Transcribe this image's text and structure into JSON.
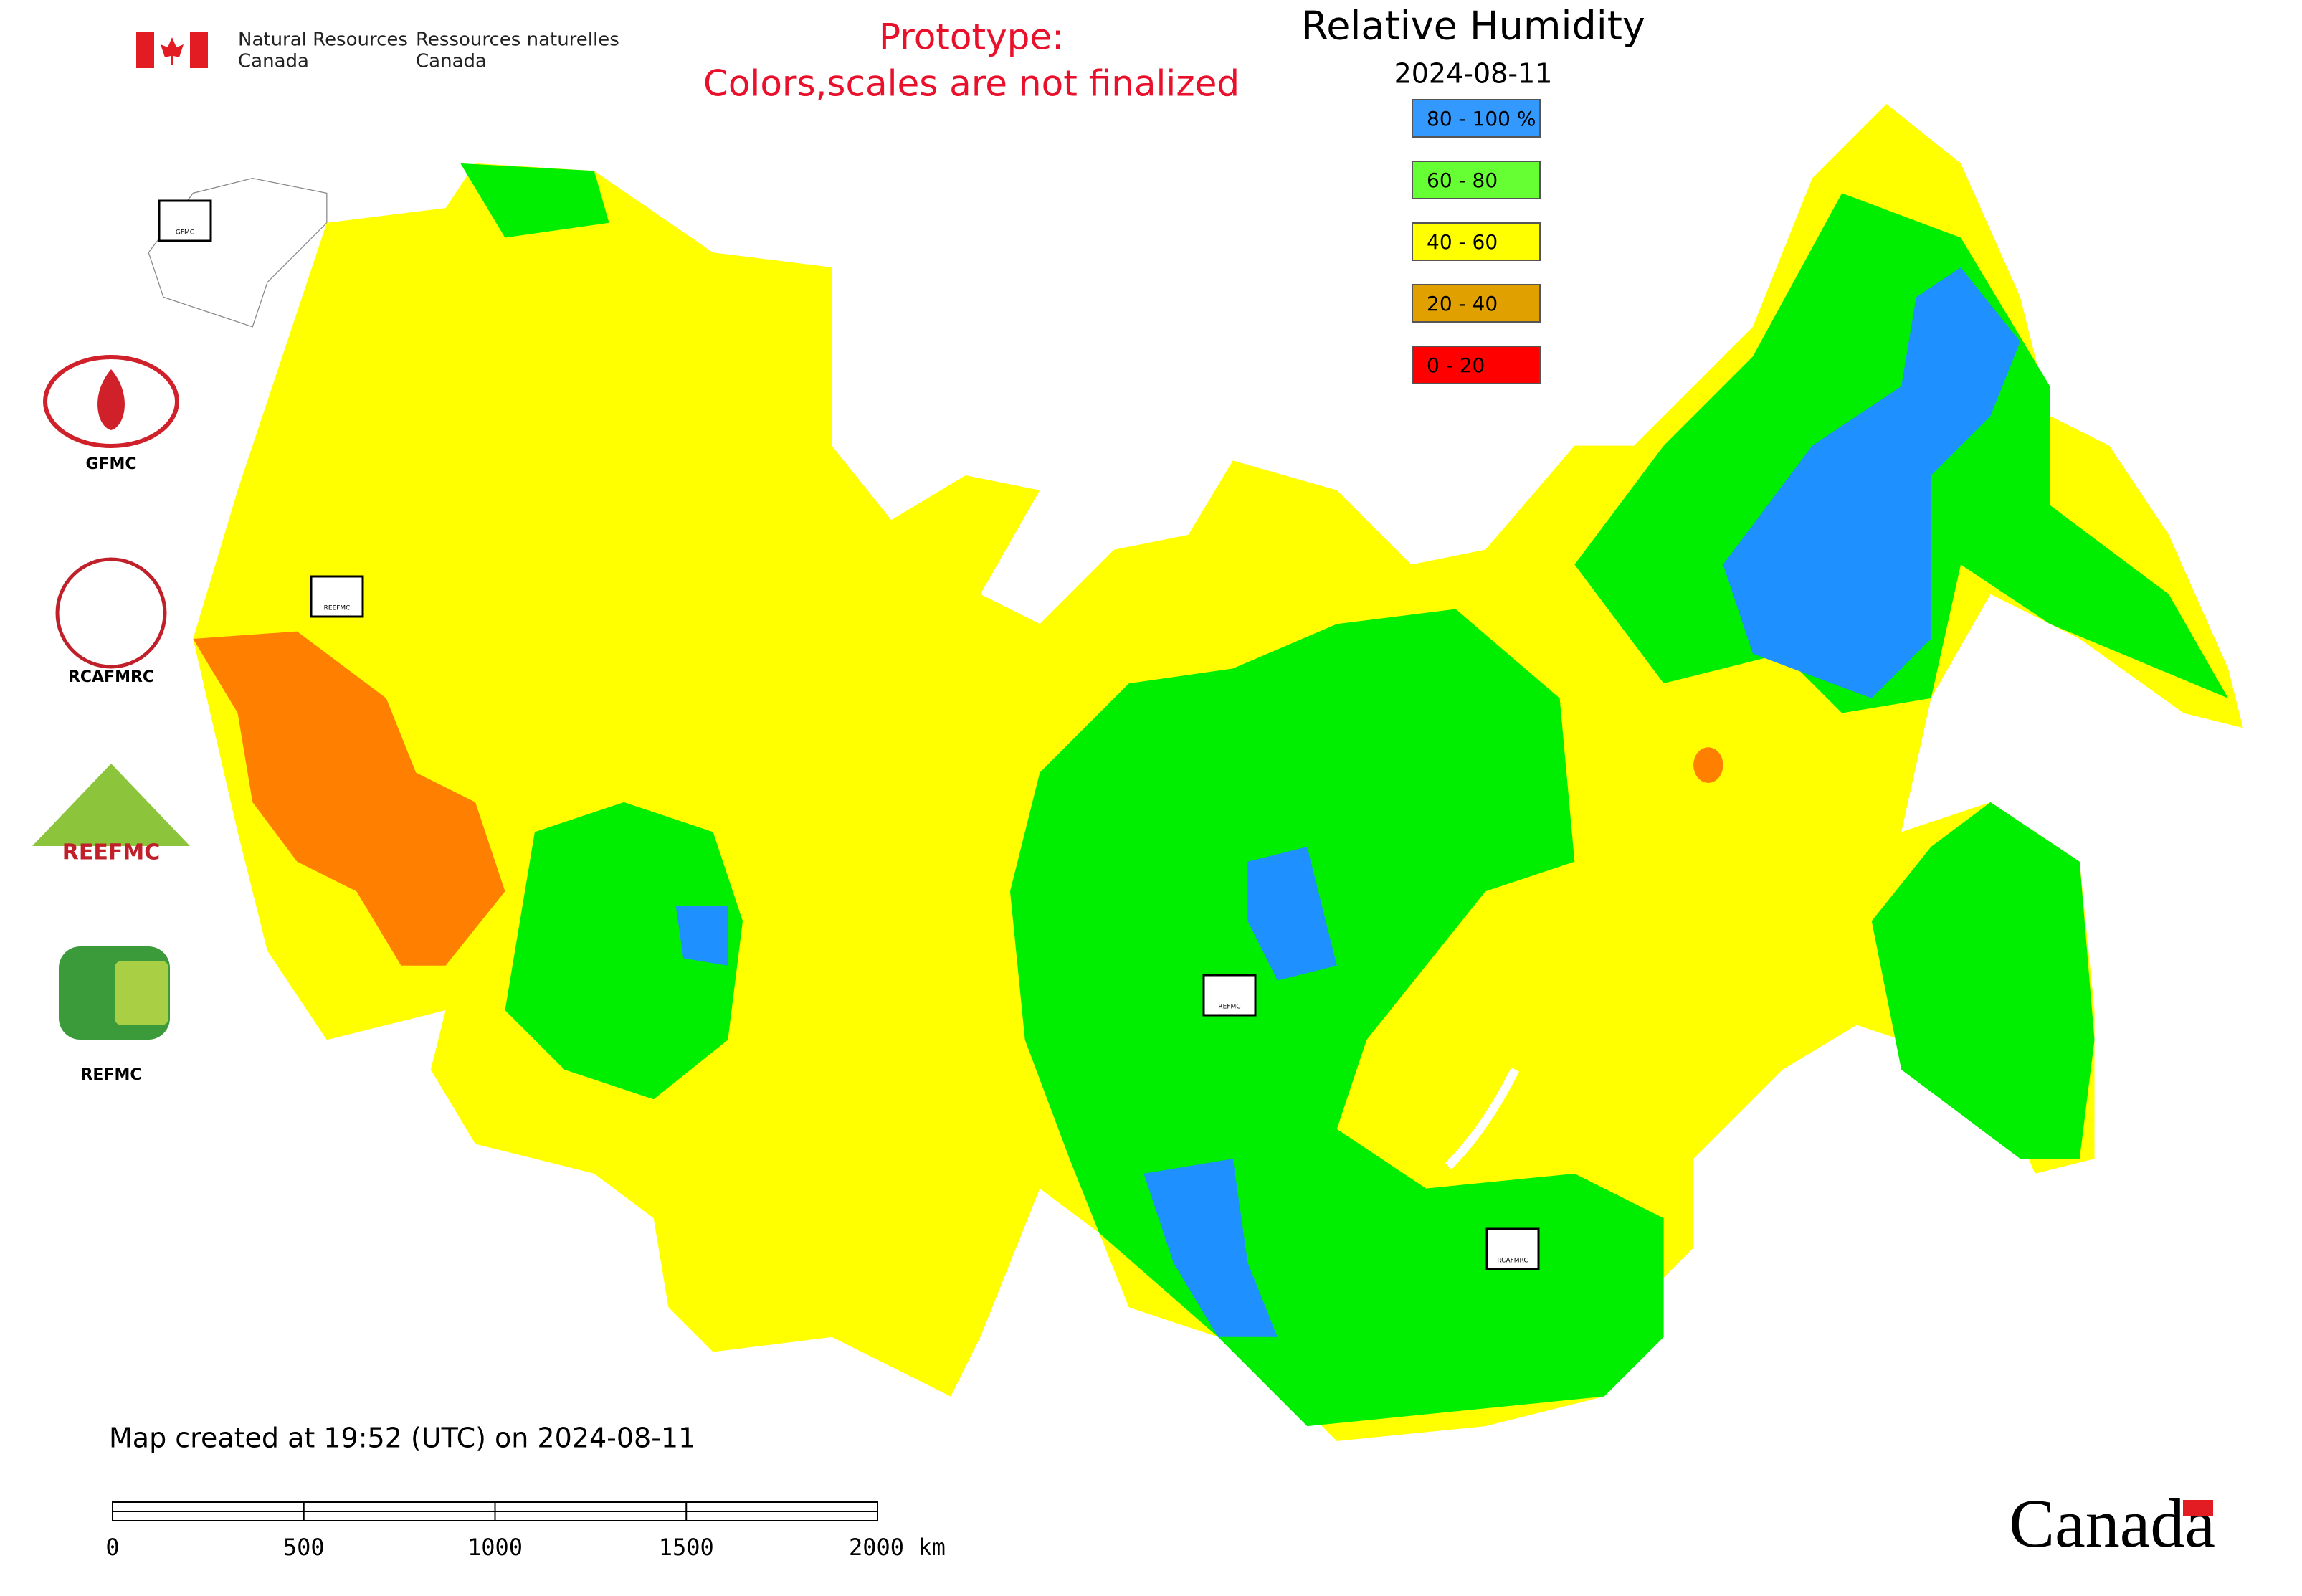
{
  "header": {
    "agency_en_1": "Natural Resources",
    "agency_en_2": "Canada",
    "agency_fr_1": "Ressources naturelles",
    "agency_fr_2": "Canada"
  },
  "notice": [
    "Prototype:",
    "Colors,scales are not finalized"
  ],
  "title": "Relative Humidity",
  "date": "2024-08-11",
  "legend": [
    {
      "label": "80 - 100 %",
      "color": "#3399ff"
    },
    {
      "label": "60 - 80",
      "color": "#66ff33"
    },
    {
      "label": "40 - 60",
      "color": "#ffff00"
    },
    {
      "label": "20 - 40",
      "color": "#e0a000"
    },
    {
      "label": "0 - 20",
      "color": "#ff0000"
    }
  ],
  "partner_logos": [
    "GFMC",
    "RCAFMRC",
    "REEFMC",
    "REFMC"
  ],
  "map_markers": [
    "GFMC",
    "REEFMC",
    "REFMC",
    "RCAFMRC"
  ],
  "footer_note": "Map created at 19:52 (UTC) on 2024-08-11",
  "scale_bar": {
    "ticks": [
      0,
      500,
      1000,
      1500,
      {
        "value": 2000,
        "label": "2000 km"
      }
    ]
  },
  "wordmark": "Canada"
}
